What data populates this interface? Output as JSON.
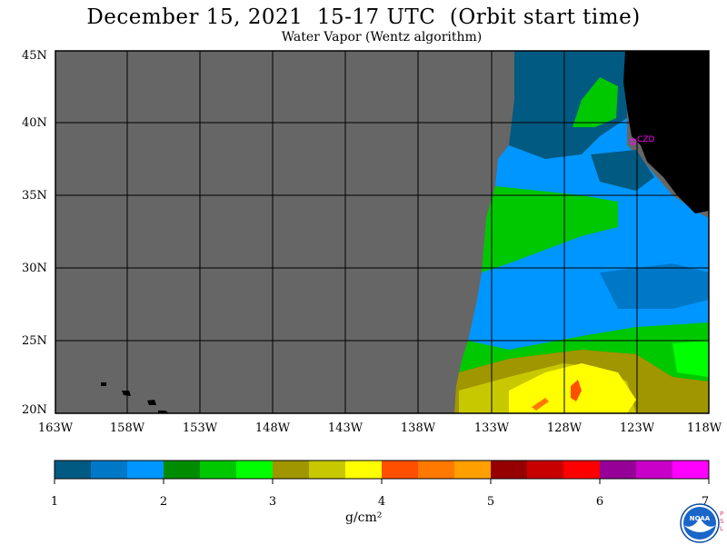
{
  "header": {
    "title": "December 15, 2021  15-17 UTC  (Orbit start time)",
    "subtitle": "Water Vapor (Wentz algorithm)"
  },
  "map": {
    "lat_labels": [
      "45N",
      "40N",
      "35N",
      "30N",
      "25N",
      "20N"
    ],
    "lon_labels": [
      "163W",
      "158W",
      "153W",
      "148W",
      "143W",
      "138W",
      "133W",
      "128W",
      "123W",
      "118W"
    ],
    "station_label": "CZD",
    "colors": {
      "no_data": "#666666",
      "land": "#000000",
      "station": "#ff00ff"
    }
  },
  "colorbar": {
    "tick_labels": [
      "1",
      "2",
      "3",
      "4",
      "5",
      "6",
      "7"
    ],
    "unit_label": "g/cm²",
    "colors": [
      "#005a82",
      "#0078c8",
      "#0096ff",
      "#008c00",
      "#00c800",
      "#00ff00",
      "#a09600",
      "#c8c800",
      "#ffff00",
      "#ff5000",
      "#ff7800",
      "#ffa000",
      "#960000",
      "#c80000",
      "#ff0000",
      "#960096",
      "#c800c8",
      "#ff00ff"
    ]
  },
  "logo": {
    "text": "NOAA",
    "side_text": "PSL"
  }
}
